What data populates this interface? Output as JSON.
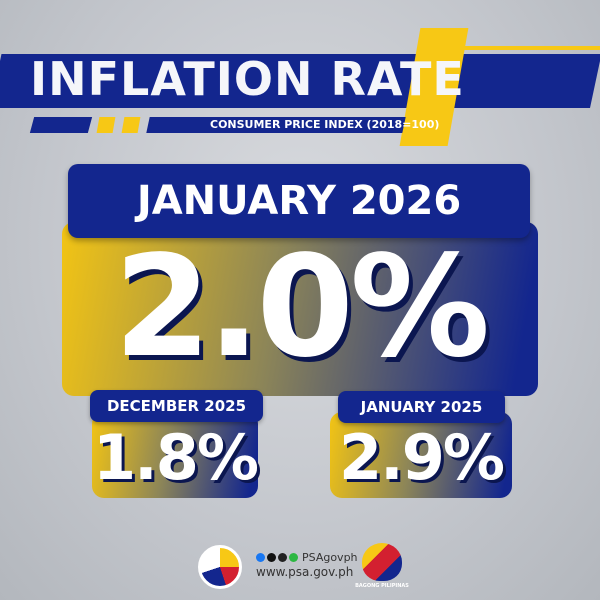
{
  "header": {
    "title": "INFLATION RATE",
    "subtitle": "CONSUMER PRICE INDEX (2018=100)"
  },
  "current": {
    "period": "JANUARY 2026",
    "value": "2.0%"
  },
  "comparisons": [
    {
      "period": "DECEMBER 2025",
      "value": "1.8%"
    },
    {
      "period": "JANUARY 2025",
      "value": "2.9%"
    }
  ],
  "footer": {
    "social_handle": "PSAgovph",
    "website": "www.psa.gov.ph",
    "social_icons": [
      "facebook-icon",
      "x-icon",
      "tiktok-icon",
      "viber-icon"
    ],
    "right_logo_text": "BAGONG PILIPINAS"
  },
  "colors": {
    "blue": "#13268e",
    "yellow": "#f7c815",
    "background": "#c8cbd0"
  }
}
